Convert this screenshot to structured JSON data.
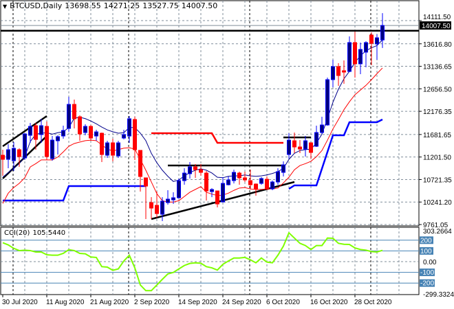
{
  "header": {
    "symbol_timeframe": "BTCUSD,Daily",
    "open": "13698.55",
    "high": "14271.25",
    "low": "13527.75",
    "close": "14007.50",
    "collapse_icon": "triangle-down-icon"
  },
  "colors": {
    "bull_body": "#00007f",
    "bull_border": "#0000ff",
    "bear": "#ff0000",
    "ma_fast": "#00008b",
    "ma_slow": "#ff0000",
    "support_steps": "#0000ff",
    "resistance_steps": "#ff0000",
    "cci_line": "#7fff00",
    "cci_levels": "#4682b4",
    "grid": "#7f8c99",
    "background": "#ffffff"
  },
  "chart_data": [
    {
      "type": "candlestick",
      "price_axis": {
        "ylim": [
          9761.05,
          14111.5
        ],
        "tick_labels": [
          "14111.50",
          "13616.80",
          "13136.65",
          "12656.50",
          "12176.35",
          "11681.65",
          "11201.50",
          "10721.35",
          "10241.20",
          "9761.05"
        ],
        "current_price_label": "14007.50",
        "current_price": 14007.5
      },
      "date_axis": {
        "tick_labels": [
          {
            "date": "2020-07-30",
            "label": "30 Jul 2020"
          },
          {
            "date": "2020-08-11",
            "label": "11 Aug 2020"
          },
          {
            "date": "2020-08-21",
            "label": "21 Aug 2020"
          },
          {
            "date": "2020-09-02",
            "label": "2 Sep 2020"
          },
          {
            "date": "2020-09-14",
            "label": "14 Sep 2020"
          },
          {
            "date": "2020-09-24",
            "label": "24 Sep 2020"
          },
          {
            "date": "2020-10-06",
            "label": "6 Oct 2020"
          },
          {
            "date": "2020-10-16",
            "label": "16 Oct 2020"
          },
          {
            "date": "2020-10-28",
            "label": "28 Oct 2020"
          }
        ],
        "period_separators": [
          "2020-08-03",
          "2020-09-01",
          "2020-10-01",
          "2020-11-02"
        ]
      },
      "grid": true,
      "candles_columns": [
        "date",
        "open",
        "high",
        "low",
        "close"
      ],
      "candles": [
        [
          "2020-07-30",
          11240,
          11357,
          10801,
          11152
        ],
        [
          "2020-07-31",
          11152,
          11474,
          10962,
          11357
        ],
        [
          "2020-08-03",
          11123,
          11518,
          10903,
          11387
        ],
        [
          "2020-08-04",
          11357,
          11387,
          10991,
          11211
        ],
        [
          "2020-08-05",
          11181,
          11710,
          11138,
          11694
        ],
        [
          "2020-08-06",
          11665,
          11929,
          11504,
          11855
        ],
        [
          "2020-08-07",
          11870,
          11929,
          11357,
          11577
        ],
        [
          "2020-08-10",
          11680,
          12017,
          11504,
          11870
        ],
        [
          "2020-08-11",
          11855,
          11958,
          11138,
          11211
        ],
        [
          "2020-08-12",
          11167,
          11650,
          11123,
          11562
        ],
        [
          "2020-08-13",
          11548,
          11665,
          11255,
          11636
        ],
        [
          "2020-08-14",
          11650,
          11870,
          11592,
          11768
        ],
        [
          "2020-08-17",
          11811,
          12485,
          11738,
          12324
        ],
        [
          "2020-08-18",
          12324,
          12427,
          11811,
          12017
        ],
        [
          "2020-08-19",
          12060,
          12090,
          11548,
          11694
        ],
        [
          "2020-08-20",
          11724,
          11899,
          11665,
          11855
        ],
        [
          "2020-08-21",
          11855,
          11885,
          11548,
          11606
        ],
        [
          "2020-08-24",
          11650,
          11782,
          11548,
          11738
        ],
        [
          "2020-08-25",
          11709,
          11724,
          11094,
          11255
        ],
        [
          "2020-08-26",
          11240,
          11548,
          11181,
          11504
        ],
        [
          "2020-08-27",
          11504,
          11592,
          11108,
          11240
        ],
        [
          "2020-08-28",
          11225,
          11548,
          11181,
          11504
        ],
        [
          "2020-08-31",
          11606,
          11782,
          11577,
          11680
        ],
        [
          "2020-09-01",
          11650,
          12075,
          11504,
          12017
        ],
        [
          "2020-09-02",
          12002,
          12060,
          11138,
          11357
        ],
        [
          "2020-09-03",
          11343,
          11350,
          10464,
          10786
        ],
        [
          "2020-09-04",
          10757,
          10757,
          9878,
          10581
        ],
        [
          "2020-09-07",
          10229,
          10346,
          9878,
          10112
        ],
        [
          "2020-09-08",
          10171,
          10464,
          9907,
          9995
        ],
        [
          "2020-09-09",
          9980,
          10346,
          9834,
          10259
        ],
        [
          "2020-09-10",
          10229,
          10493,
          10185,
          10303
        ],
        [
          "2020-09-11",
          10288,
          10449,
          10200,
          10332
        ],
        [
          "2020-09-14",
          10332,
          10742,
          10317,
          10698
        ],
        [
          "2020-09-15",
          10698,
          10962,
          10610,
          10859
        ],
        [
          "2020-09-16",
          10845,
          11094,
          10742,
          10991
        ],
        [
          "2020-09-17",
          10991,
          11050,
          10757,
          10932
        ],
        [
          "2020-09-18",
          10932,
          11050,
          10801,
          10874
        ],
        [
          "2020-09-21",
          10859,
          10903,
          10273,
          10478
        ],
        [
          "2020-09-22",
          10464,
          10537,
          10346,
          10508
        ],
        [
          "2020-09-23",
          10478,
          10478,
          10127,
          10200
        ],
        [
          "2020-09-24",
          10244,
          10771,
          10229,
          10639
        ],
        [
          "2020-09-25",
          10610,
          10786,
          10596,
          10713
        ],
        [
          "2020-09-28",
          10698,
          10932,
          10639,
          10874
        ],
        [
          "2020-09-29",
          10859,
          10889,
          10610,
          10757
        ],
        [
          "2020-09-30",
          10757,
          10889,
          10669,
          10713
        ],
        [
          "2020-10-01",
          10698,
          10932,
          10508,
          10610
        ],
        [
          "2020-10-02",
          10625,
          10639,
          10376,
          10522
        ],
        [
          "2020-10-05",
          10639,
          10771,
          10610,
          10742
        ],
        [
          "2020-10-06",
          10727,
          10786,
          10493,
          10522
        ],
        [
          "2020-10-07",
          10522,
          10698,
          10493,
          10669
        ],
        [
          "2020-10-08",
          10669,
          10962,
          10610,
          10889
        ],
        [
          "2020-10-09",
          10874,
          11108,
          10786,
          11035
        ],
        [
          "2020-10-12",
          11255,
          11709,
          11167,
          11562
        ],
        [
          "2020-10-13",
          11548,
          11724,
          11284,
          11416
        ],
        [
          "2020-10-14",
          11416,
          11562,
          11284,
          11372
        ],
        [
          "2020-10-15",
          11372,
          11650,
          11211,
          11548
        ],
        [
          "2020-10-16",
          11504,
          11518,
          11167,
          11299
        ],
        [
          "2020-10-19",
          11431,
          11870,
          11416,
          11724
        ],
        [
          "2020-10-20",
          11724,
          12060,
          11694,
          11885
        ],
        [
          "2020-10-21",
          11885,
          12896,
          11870,
          12852
        ],
        [
          "2020-10-22",
          12852,
          13276,
          12690,
          13130
        ],
        [
          "2020-10-23",
          13130,
          13203,
          12720,
          12940
        ],
        [
          "2020-10-26",
          13042,
          13262,
          12764,
          13013
        ],
        [
          "2020-10-27",
          13027,
          13775,
          13013,
          13643
        ],
        [
          "2020-10-28",
          13643,
          13877,
          12896,
          13189
        ],
        [
          "2020-10-29",
          13189,
          13643,
          12969,
          13496
        ],
        [
          "2020-10-30",
          13438,
          13672,
          13115,
          13643
        ],
        [
          "2020-11-02",
          13804,
          13862,
          13159,
          13628
        ],
        [
          "2020-11-03",
          13613,
          13818,
          13276,
          13745
        ],
        [
          "2020-11-04",
          13698.55,
          14271.25,
          13527.75,
          14007.5
        ]
      ],
      "moving_average_fast": [
        10770,
        10870,
        10960,
        11060,
        11210,
        11530,
        11690,
        11710,
        11720,
        11690,
        11720,
        11740,
        11830,
        12030,
        12050,
        12020,
        11970,
        11910,
        11840,
        11780,
        11740,
        11710,
        11720,
        11830,
        11830,
        11710,
        11550,
        11280,
        11080,
        10920,
        10790,
        10680,
        10710,
        10800,
        10870,
        10920,
        10950,
        10920,
        10860,
        10770,
        10760,
        10790,
        10800,
        10800,
        10820,
        10800,
        10790,
        10800,
        10820,
        10850,
        10890,
        10960,
        11150,
        11280,
        11340,
        11360,
        11370,
        11500,
        11690,
        12020,
        12370,
        12650,
        12870,
        13030,
        13220,
        13360,
        13470,
        13530,
        13580,
        13700
      ],
      "moving_average_slow": [
        10210,
        10430,
        10550,
        10640,
        10760,
        10990,
        11060,
        11140,
        11140,
        11140,
        11200,
        11310,
        11430,
        11490,
        11520,
        11550,
        11560,
        11550,
        11460,
        11370,
        11330,
        11360,
        11390,
        11400,
        11370,
        11150,
        10920,
        10670,
        10420,
        10270,
        10240,
        10240,
        10270,
        10360,
        10450,
        10510,
        10570,
        10450,
        10410,
        10380,
        10390,
        10430,
        10490,
        10540,
        10550,
        10520,
        10510,
        10510,
        10520,
        10520,
        10540,
        10650,
        10770,
        10930,
        11020,
        11060,
        11110,
        11210,
        11340,
        11560,
        11800,
        12000,
        12210,
        12380,
        12530,
        12630,
        12730,
        12850,
        12980,
        13100
      ],
      "support_steps": [
        [
          [
            "2020-07-30",
            10273
          ],
          [
            "2020-08-14",
            10273
          ],
          [
            "2020-08-17",
            10581
          ],
          [
            "2020-09-04",
            10581
          ]
        ],
        [
          [
            "2020-10-12",
            10522
          ],
          [
            "2020-10-13",
            10596
          ],
          [
            "2020-10-19",
            10596
          ],
          [
            "2020-10-22",
            11665
          ],
          [
            "2020-10-26",
            11665
          ],
          [
            "2020-10-27",
            11943
          ],
          [
            "2020-11-03",
            11943
          ],
          [
            "2020-11-04",
            12002
          ]
        ]
      ],
      "resistance_steps": [
        [
          "2020-09-07",
          11709
        ],
        [
          "2020-09-22",
          11709
        ],
        [
          "2020-09-23",
          11504
        ],
        [
          "2020-10-09",
          11504
        ]
      ],
      "trendlines": [
        {
          "points": [
            [
              "2020-07-30",
              11431
            ],
            [
              "2020-08-11",
              12075
            ]
          ]
        },
        {
          "points": [
            [
              "2020-07-30",
              10742
            ],
            [
              "2020-08-11",
              11650
            ]
          ]
        },
        {
          "points": [
            [
              "2020-09-07",
              9878
            ],
            [
              "2020-10-13",
              10669
            ]
          ]
        },
        {
          "points": [
            [
              "2020-09-10",
              11020
            ],
            [
              "2020-10-09",
              11020
            ]
          ]
        },
        {
          "points": [
            [
              "2020-10-09",
              11620
            ],
            [
              "2020-10-16",
              11620
            ]
          ]
        }
      ],
      "horizontal_line": 13896
    },
    {
      "type": "line",
      "title": "CCI(20)",
      "current_value": "105.5440",
      "ylim": [
        -299.3324,
        303.2664
      ],
      "tick_labels": [
        "303.2664",
        "200",
        "100",
        "0.00",
        "-100",
        "-200",
        "-299.3324"
      ],
      "levels": [
        200,
        100,
        -100,
        -200
      ],
      "level_labels": [
        "200",
        "100",
        "-100",
        "-200"
      ],
      "values": [
        177,
        156,
        124,
        103,
        107,
        103,
        90,
        90,
        64,
        60,
        60,
        77,
        111,
        103,
        77,
        73,
        43,
        39,
        -47,
        -51,
        -81,
        -68,
        6,
        60,
        -58,
        -218,
        -271,
        -271,
        -218,
        -165,
        -115,
        -101,
        -68,
        -36,
        -17,
        -11,
        -15,
        -47,
        -58,
        -79,
        -25,
        6,
        34,
        34,
        39,
        17,
        -11,
        34,
        -4,
        -11,
        60,
        145,
        269,
        220,
        171,
        150,
        113,
        150,
        150,
        220,
        218,
        171,
        162,
        160,
        128,
        113,
        107,
        94,
        90,
        105.544
      ]
    }
  ]
}
